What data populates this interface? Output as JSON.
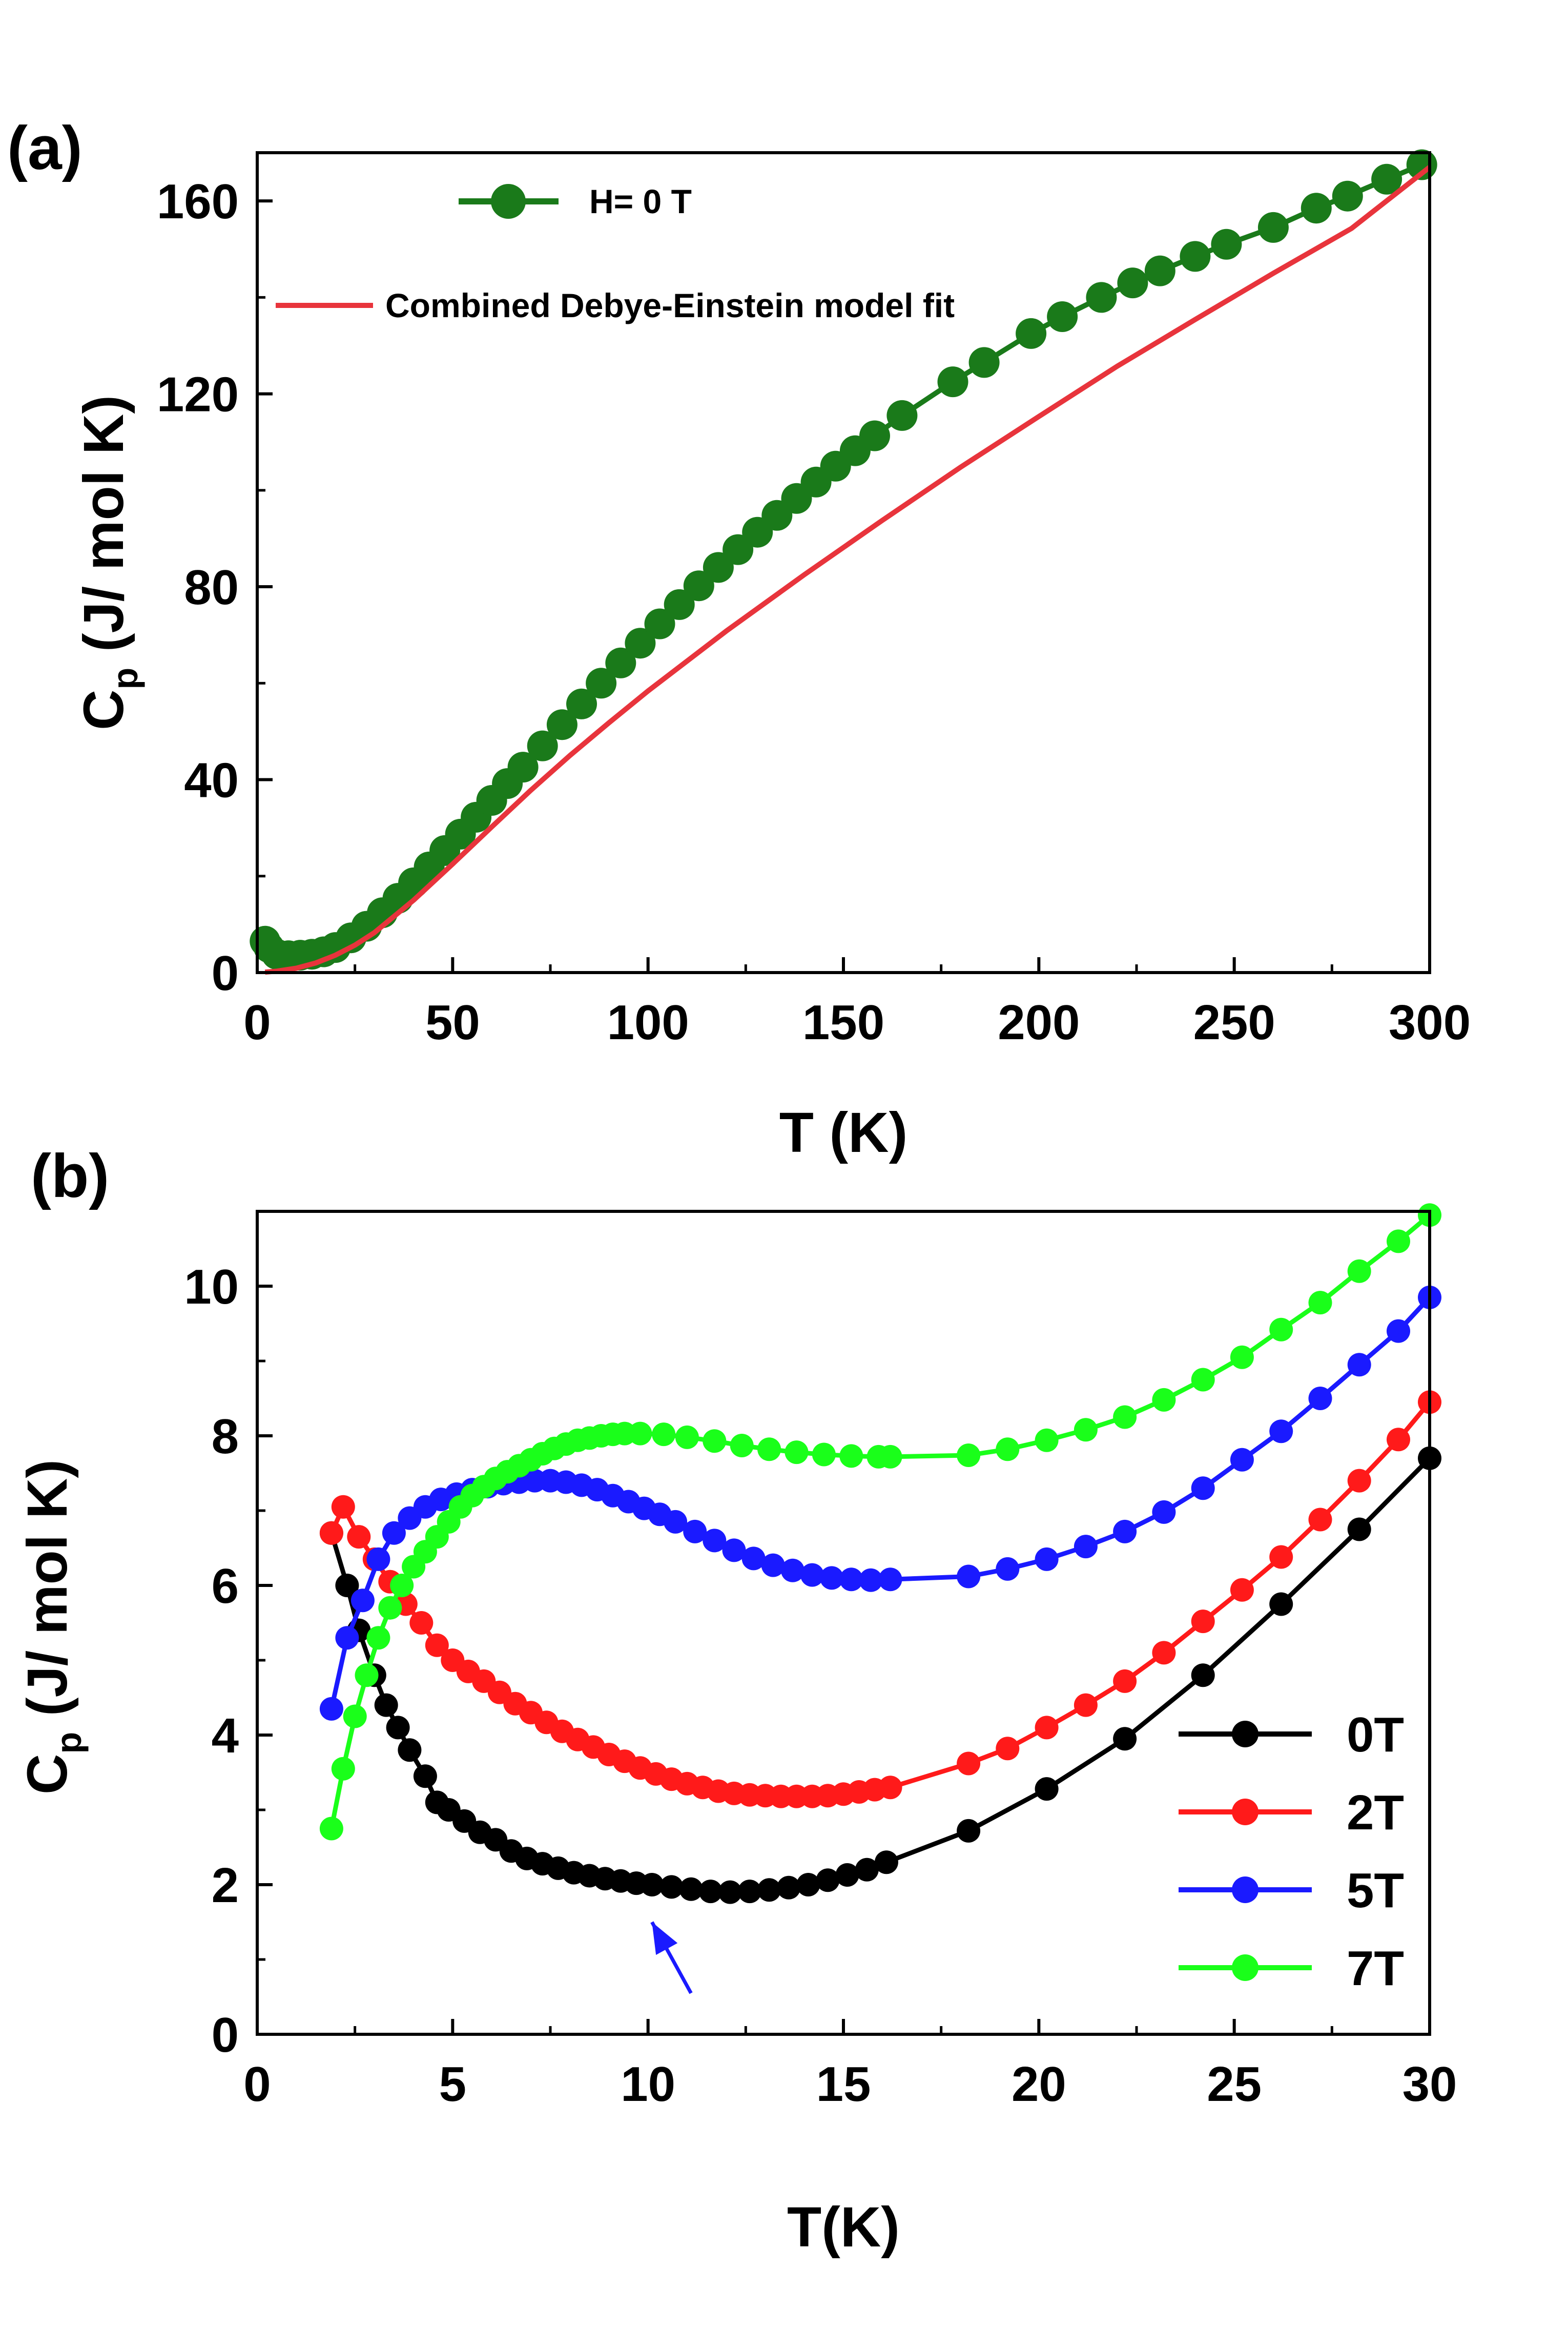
{
  "chart_data": [
    {
      "type": "scatter",
      "panel_label": "(a)",
      "xlabel": "T (K)",
      "ylabel_main": "C",
      "ylabel_sub": "p",
      "ylabel_rest": " (J/ mol K)",
      "xlim": [
        0,
        300
      ],
      "ylim": [
        0,
        170
      ],
      "xticks": [
        0,
        50,
        100,
        150,
        200,
        250,
        300
      ],
      "yticks": [
        0,
        40,
        80,
        120,
        160
      ],
      "legend_position": "top-left",
      "series": [
        {
          "name": "H= 0 T",
          "style": "line+markers",
          "color": "#1a7a1a",
          "x": [
            2,
            3,
            5,
            8,
            11,
            14,
            17,
            20,
            24,
            28,
            32,
            36,
            40,
            44,
            48,
            52,
            56,
            60,
            64,
            68,
            73,
            78,
            83,
            88,
            93,
            98,
            103,
            108,
            113,
            118,
            123,
            128,
            133,
            138,
            143,
            148,
            153,
            158,
            165,
            178,
            186,
            198,
            206,
            216,
            224,
            231,
            240,
            248,
            260,
            271,
            279,
            289,
            298
          ],
          "y": [
            6.5,
            5.2,
            3.8,
            3.5,
            3.6,
            3.8,
            4.3,
            5.2,
            7.2,
            9.6,
            12.4,
            15.4,
            18.6,
            21.9,
            25.3,
            28.7,
            32.2,
            35.7,
            39.2,
            42.6,
            47.0,
            51.4,
            55.7,
            60.0,
            64.2,
            68.3,
            72.3,
            76.3,
            80.2,
            84.0,
            87.7,
            91.3,
            94.8,
            98.3,
            101.7,
            105.0,
            108.2,
            111.3,
            115.5,
            122.5,
            126.5,
            132.5,
            136.0,
            140.0,
            143.0,
            145.5,
            148.5,
            151.0,
            154.5,
            158.5,
            161.0,
            164.5,
            167.5
          ]
        },
        {
          "name": "Combined Debye-Einstein model fit",
          "style": "line",
          "color": "#e8343c",
          "x": [
            2,
            5,
            10,
            15,
            20,
            25,
            30,
            40,
            50,
            60,
            70,
            80,
            90,
            100,
            120,
            140,
            160,
            180,
            200,
            220,
            240,
            260,
            280,
            300
          ],
          "y": [
            0.1,
            0.3,
            0.9,
            2.0,
            3.6,
            5.7,
            8.3,
            15.0,
            22.5,
            30.2,
            37.8,
            45.0,
            51.8,
            58.4,
            70.8,
            82.5,
            93.8,
            104.8,
            115.3,
            125.7,
            135.4,
            145.0,
            154.3,
            167.0
          ]
        }
      ]
    },
    {
      "type": "line",
      "panel_label": "(b)",
      "xlabel": "T(K)",
      "ylabel_main": "C",
      "ylabel_sub": "p",
      "ylabel_rest": " (J/ mol K)",
      "xlim": [
        0,
        30
      ],
      "ylim": [
        0,
        11
      ],
      "xticks": [
        0,
        5,
        10,
        15,
        20,
        25,
        30
      ],
      "yticks": [
        0,
        2,
        4,
        6,
        8,
        10
      ],
      "legend_position": "bottom-right",
      "series": [
        {
          "name": "0T",
          "color": "#000000",
          "x": [
            1.9,
            2.3,
            2.6,
            3.0,
            3.3,
            3.6,
            3.9,
            4.3,
            4.6,
            4.9,
            5.3,
            5.7,
            6.1,
            6.5,
            6.9,
            7.3,
            7.7,
            8.1,
            8.5,
            8.9,
            9.3,
            9.7,
            10.1,
            10.6,
            11.1,
            11.6,
            12.1,
            12.6,
            13.1,
            13.6,
            14.1,
            14.6,
            15.1,
            15.6,
            16.1,
            18.2,
            20.2,
            22.2,
            24.2,
            26.2,
            28.2,
            30.0
          ],
          "y": [
            6.7,
            6.0,
            5.4,
            4.8,
            4.4,
            4.1,
            3.8,
            3.45,
            3.1,
            3.0,
            2.85,
            2.7,
            2.6,
            2.45,
            2.35,
            2.28,
            2.22,
            2.16,
            2.12,
            2.08,
            2.05,
            2.02,
            2.0,
            1.97,
            1.94,
            1.91,
            1.9,
            1.91,
            1.93,
            1.96,
            2.0,
            2.06,
            2.13,
            2.2,
            2.3,
            2.72,
            3.28,
            3.95,
            4.8,
            5.75,
            6.75,
            7.7
          ]
        },
        {
          "name": "2T",
          "color": "#ff1a1a",
          "x": [
            1.9,
            2.2,
            2.6,
            3.0,
            3.4,
            3.8,
            4.2,
            4.6,
            5.0,
            5.4,
            5.8,
            6.2,
            6.6,
            7.0,
            7.4,
            7.8,
            8.2,
            8.6,
            9.0,
            9.4,
            9.8,
            10.2,
            10.6,
            11.0,
            11.4,
            11.8,
            12.2,
            12.6,
            13.0,
            13.4,
            13.8,
            14.2,
            14.6,
            15.0,
            15.4,
            15.8,
            16.2,
            18.2,
            19.2,
            20.2,
            21.2,
            22.2,
            23.2,
            24.2,
            25.2,
            26.2,
            27.2,
            28.2,
            29.2,
            30.0
          ],
          "y": [
            6.7,
            7.05,
            6.65,
            6.35,
            6.05,
            5.75,
            5.5,
            5.2,
            5.0,
            4.85,
            4.72,
            4.57,
            4.42,
            4.3,
            4.17,
            4.05,
            3.94,
            3.84,
            3.74,
            3.65,
            3.56,
            3.48,
            3.41,
            3.35,
            3.3,
            3.25,
            3.22,
            3.2,
            3.19,
            3.18,
            3.18,
            3.18,
            3.19,
            3.21,
            3.24,
            3.27,
            3.3,
            3.62,
            3.82,
            4.1,
            4.4,
            4.72,
            5.1,
            5.52,
            5.94,
            6.38,
            6.88,
            7.4,
            7.95,
            8.45
          ]
        },
        {
          "name": "5T",
          "color": "#1a1aff",
          "x": [
            1.9,
            2.3,
            2.7,
            3.1,
            3.5,
            3.9,
            4.3,
            4.7,
            5.1,
            5.5,
            5.9,
            6.3,
            6.7,
            7.1,
            7.5,
            7.9,
            8.3,
            8.7,
            9.1,
            9.5,
            9.9,
            10.3,
            10.7,
            11.2,
            11.7,
            12.2,
            12.7,
            13.2,
            13.7,
            14.2,
            14.7,
            15.2,
            15.7,
            16.2,
            18.2,
            19.2,
            20.2,
            21.2,
            22.2,
            23.2,
            24.2,
            25.2,
            26.2,
            27.2,
            28.2,
            29.2,
            30.0
          ],
          "y": [
            4.35,
            5.3,
            5.8,
            6.35,
            6.7,
            6.9,
            7.05,
            7.15,
            7.22,
            7.28,
            7.32,
            7.36,
            7.38,
            7.4,
            7.4,
            7.38,
            7.34,
            7.28,
            7.2,
            7.12,
            7.03,
            6.95,
            6.85,
            6.72,
            6.6,
            6.47,
            6.36,
            6.27,
            6.2,
            6.14,
            6.1,
            6.08,
            6.07,
            6.08,
            6.12,
            6.22,
            6.35,
            6.52,
            6.72,
            6.98,
            7.3,
            7.68,
            8.06,
            8.5,
            8.95,
            9.4,
            9.85
          ]
        },
        {
          "name": "7T",
          "color": "#1aff1a",
          "x": [
            1.9,
            2.2,
            2.5,
            2.8,
            3.1,
            3.4,
            3.7,
            4.0,
            4.3,
            4.6,
            4.9,
            5.2,
            5.5,
            5.8,
            6.1,
            6.4,
            6.7,
            7.0,
            7.3,
            7.6,
            7.9,
            8.2,
            8.5,
            8.8,
            9.1,
            9.4,
            9.8,
            10.4,
            11.0,
            11.7,
            12.4,
            13.1,
            13.8,
            14.5,
            15.2,
            15.9,
            16.2,
            18.2,
            19.2,
            20.2,
            21.2,
            22.2,
            23.2,
            24.2,
            25.2,
            26.2,
            27.2,
            28.2,
            29.2,
            30.0
          ],
          "y": [
            2.75,
            3.55,
            4.25,
            4.8,
            5.3,
            5.7,
            6.0,
            6.25,
            6.45,
            6.65,
            6.85,
            7.05,
            7.2,
            7.32,
            7.43,
            7.52,
            7.6,
            7.68,
            7.76,
            7.83,
            7.89,
            7.94,
            7.97,
            8.0,
            8.02,
            8.03,
            8.03,
            8.02,
            7.98,
            7.93,
            7.87,
            7.82,
            7.78,
            7.75,
            7.73,
            7.72,
            7.72,
            7.74,
            7.82,
            7.94,
            8.08,
            8.25,
            8.48,
            8.75,
            9.05,
            9.42,
            9.78,
            10.2,
            10.6,
            10.95
          ]
        }
      ],
      "annotations": [
        {
          "type": "arrow",
          "color": "#1a1aff",
          "from": [
            11.1,
            0.55
          ],
          "to": [
            10.1,
            1.5
          ]
        }
      ]
    }
  ]
}
